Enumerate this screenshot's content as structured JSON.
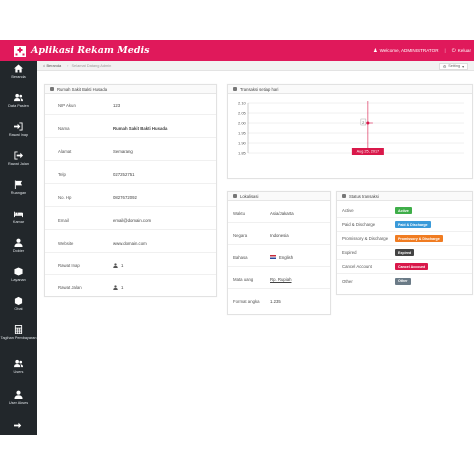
{
  "header": {
    "title": "Aplikasi Rekam Medis",
    "welcome": "Welcome, ADMINISTRATOR",
    "logout": "Keluar",
    "brand_color": "#e0195b"
  },
  "sidebar": {
    "items": [
      {
        "label": "Beranda",
        "icon": "home-icon"
      },
      {
        "label": "Data Pasien",
        "icon": "users-icon"
      },
      {
        "label": "Rawat Inap",
        "icon": "sign-in-icon"
      },
      {
        "label": "Rawat Jalan",
        "icon": "sign-out-icon"
      },
      {
        "label": "Ruangan",
        "icon": "flag-icon"
      },
      {
        "label": "Kamar",
        "icon": "bed-icon"
      },
      {
        "label": "Dokter",
        "icon": "user-md-icon"
      },
      {
        "label": "Layanan",
        "icon": "cubes-icon"
      },
      {
        "label": "Obat",
        "icon": "pill-box-icon"
      },
      {
        "label": "Tagihan Pembayaran",
        "icon": "calculator-icon"
      },
      {
        "label": "Users",
        "icon": "users-icon"
      },
      {
        "label": "User Akses",
        "icon": "user-icon"
      },
      {
        "label": "",
        "icon": "logout-icon"
      }
    ]
  },
  "breadcrumb": {
    "home": "Beranda",
    "sub": "Selamat Datang Admin",
    "setting": "Setting"
  },
  "profile": {
    "title": "Rumah Sakit Bakti Husada",
    "rows": [
      {
        "key": "NIP Akun",
        "value": "123"
      },
      {
        "key": "Nama",
        "value": "Rumah Sakit Bakti Husada"
      },
      {
        "key": "Alamat",
        "value": "Semarang"
      },
      {
        "key": "Telp",
        "value": "027252751"
      },
      {
        "key": "No. Hp",
        "value": "0827672092"
      },
      {
        "key": "Email",
        "value": "email@domain.com"
      },
      {
        "key": "Website",
        "value": "www.domain.com"
      },
      {
        "key": "Rawat Inap",
        "value": "1"
      },
      {
        "key": "Rawat Jalan",
        "value": "1"
      }
    ]
  },
  "chart_data": {
    "type": "line",
    "title": "Transaksi setiap hari",
    "yticks": [
      2.1,
      2.05,
      2.0,
      1.95,
      1.9,
      1.85
    ],
    "ylim": [
      1.85,
      2.1
    ],
    "points": [
      {
        "x": "Aug 25, 2017",
        "y": 2
      }
    ],
    "point_label": "2",
    "tooltip": "Aug 25, 2017",
    "color": "#d9184a"
  },
  "location": {
    "title": "Lokalisasi",
    "rows": [
      {
        "key": "Waktu",
        "value": "Asia/Jakarta"
      },
      {
        "key": "Negara",
        "value": "Indonesia"
      },
      {
        "key": "Bahasa",
        "value": "English"
      },
      {
        "key": "Mata uang",
        "value": "Rp. Rupiah"
      },
      {
        "key": "Format angka",
        "value": "1.235"
      }
    ]
  },
  "status": {
    "title": "Status transaksi",
    "rows": [
      {
        "key": "Active",
        "badge": "Active",
        "color": "#3fae49"
      },
      {
        "key": "Paid & Discharge",
        "badge": "Paid & Discharge",
        "color": "#3a9ad9"
      },
      {
        "key": "Promissory & Discharge",
        "badge": "Promissory & Discharge",
        "color": "#f07c22"
      },
      {
        "key": "Expired",
        "badge": "Expired",
        "color": "#444444"
      },
      {
        "key": "Cancel Account",
        "badge": "Cancel Account",
        "color": "#d9184a"
      },
      {
        "key": "Other",
        "badge": "Other",
        "color": "#6b7b87"
      }
    ]
  }
}
